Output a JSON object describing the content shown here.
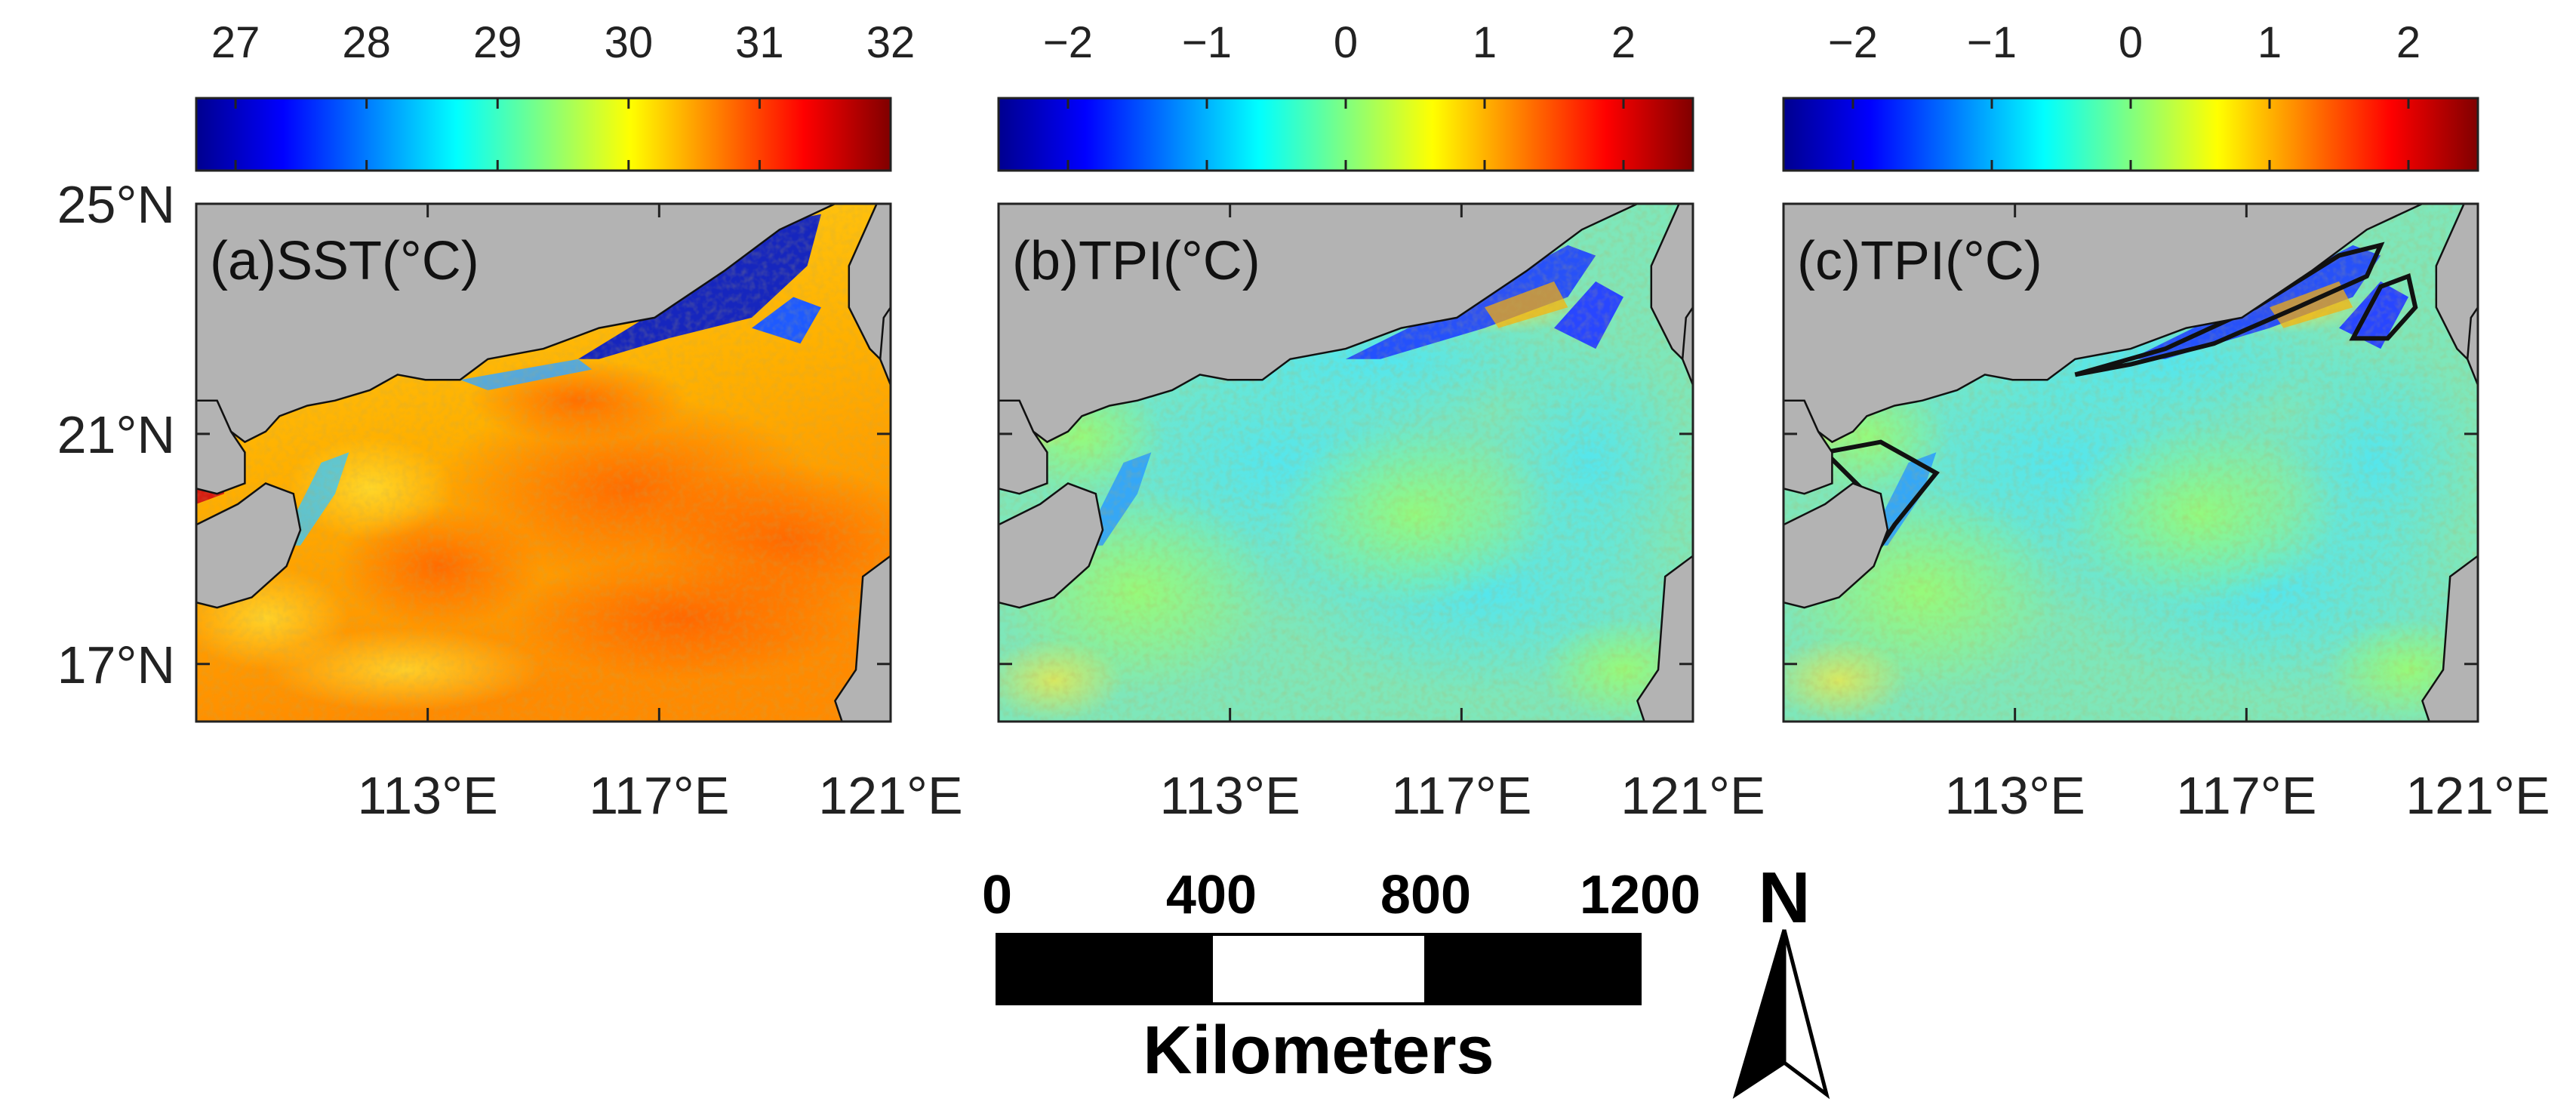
{
  "panels": [
    {
      "label": "(a)SST(°C)",
      "variable": "SST",
      "unit": "°C",
      "colorbar_ticks": [
        "27",
        "28",
        "29",
        "30",
        "31",
        "32"
      ],
      "colorbar_range": [
        26.7,
        32
      ],
      "lat_labels": [
        "25°N",
        "21°N",
        "17°N"
      ],
      "lon_labels": [
        "113°E",
        "117°E",
        "121°E"
      ],
      "contour_overlay": false
    },
    {
      "label": "(b)TPI(°C)",
      "variable": "TPI",
      "unit": "°C",
      "colorbar_ticks": [
        "−2",
        "−1",
        "0",
        "1",
        "2"
      ],
      "colorbar_range": [
        -2.5,
        2.5
      ],
      "lat_labels": [],
      "lon_labels": [
        "113°E",
        "117°E",
        "121°E"
      ],
      "contour_overlay": false
    },
    {
      "label": "(c)TPI(°C)",
      "variable": "TPI",
      "unit": "°C",
      "colorbar_ticks": [
        "−2",
        "−1",
        "0",
        "1",
        "2"
      ],
      "colorbar_range": [
        -2.5,
        2.5
      ],
      "lat_labels": [],
      "lon_labels": [
        "113°E",
        "117°E",
        "121°E"
      ],
      "contour_overlay": true
    }
  ],
  "map_extent": {
    "lon": [
      109,
      121
    ],
    "lat": [
      16,
      25
    ]
  },
  "scale_bar": {
    "ticks": [
      "0",
      "400",
      "800",
      "1200"
    ],
    "unit_label": "Kilometers"
  },
  "north_arrow": {
    "label": "N"
  },
  "colors": {
    "land": "#b3b3b3",
    "colormap": [
      "#00008f",
      "#0000ff",
      "#0080ff",
      "#00ffff",
      "#80ff80",
      "#ffff00",
      "#ff8000",
      "#ff0000",
      "#800000"
    ]
  }
}
